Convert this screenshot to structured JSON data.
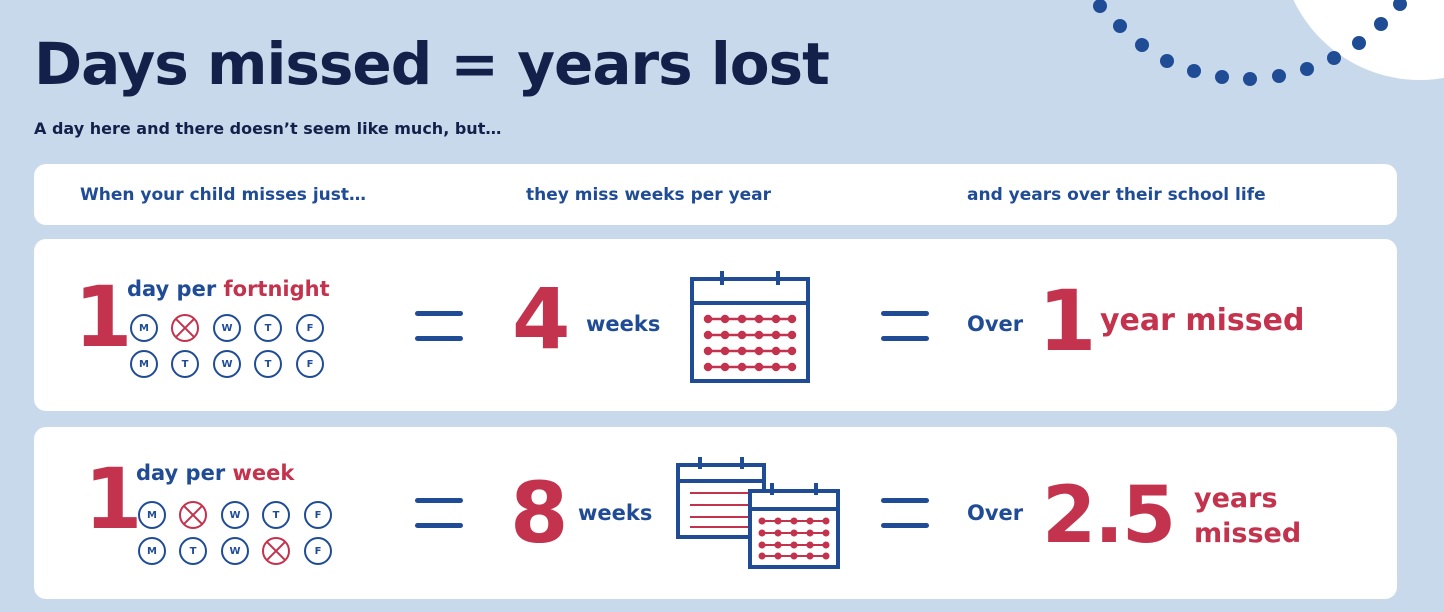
{
  "header": {
    "title": "Days missed = years lost",
    "subtitle": "A day here and there doesn’t seem like much, but…"
  },
  "columns": {
    "col1": "When your child misses just…",
    "col2": "they miss weeks per year",
    "col3": "and years over their school life"
  },
  "rows": [
    {
      "days_count": "1",
      "freq_prefix": "day per",
      "freq_unit": "fortnight",
      "week1": [
        "M",
        "T",
        "W",
        "T",
        "F"
      ],
      "week2": [
        "M",
        "T",
        "W",
        "T",
        "F"
      ],
      "weeks_count": "4",
      "weeks_label": "weeks",
      "over_label": "Over",
      "years_count": "1",
      "years_label": "year missed"
    },
    {
      "days_count": "1",
      "freq_prefix": "day per",
      "freq_unit": "week",
      "week1": [
        "M",
        "T",
        "W",
        "T",
        "F"
      ],
      "week2": [
        "M",
        "T",
        "W",
        "T",
        "F"
      ],
      "weeks_count": "8",
      "weeks_label": "weeks",
      "over_label": "Over",
      "years_count": "2.5",
      "years_label_1": "years",
      "years_label_2": "missed"
    }
  ],
  "colors": {
    "background": "#c9d9ec",
    "navy": "#13214a",
    "blue": "#1f4c95",
    "red": "#c4334d"
  }
}
